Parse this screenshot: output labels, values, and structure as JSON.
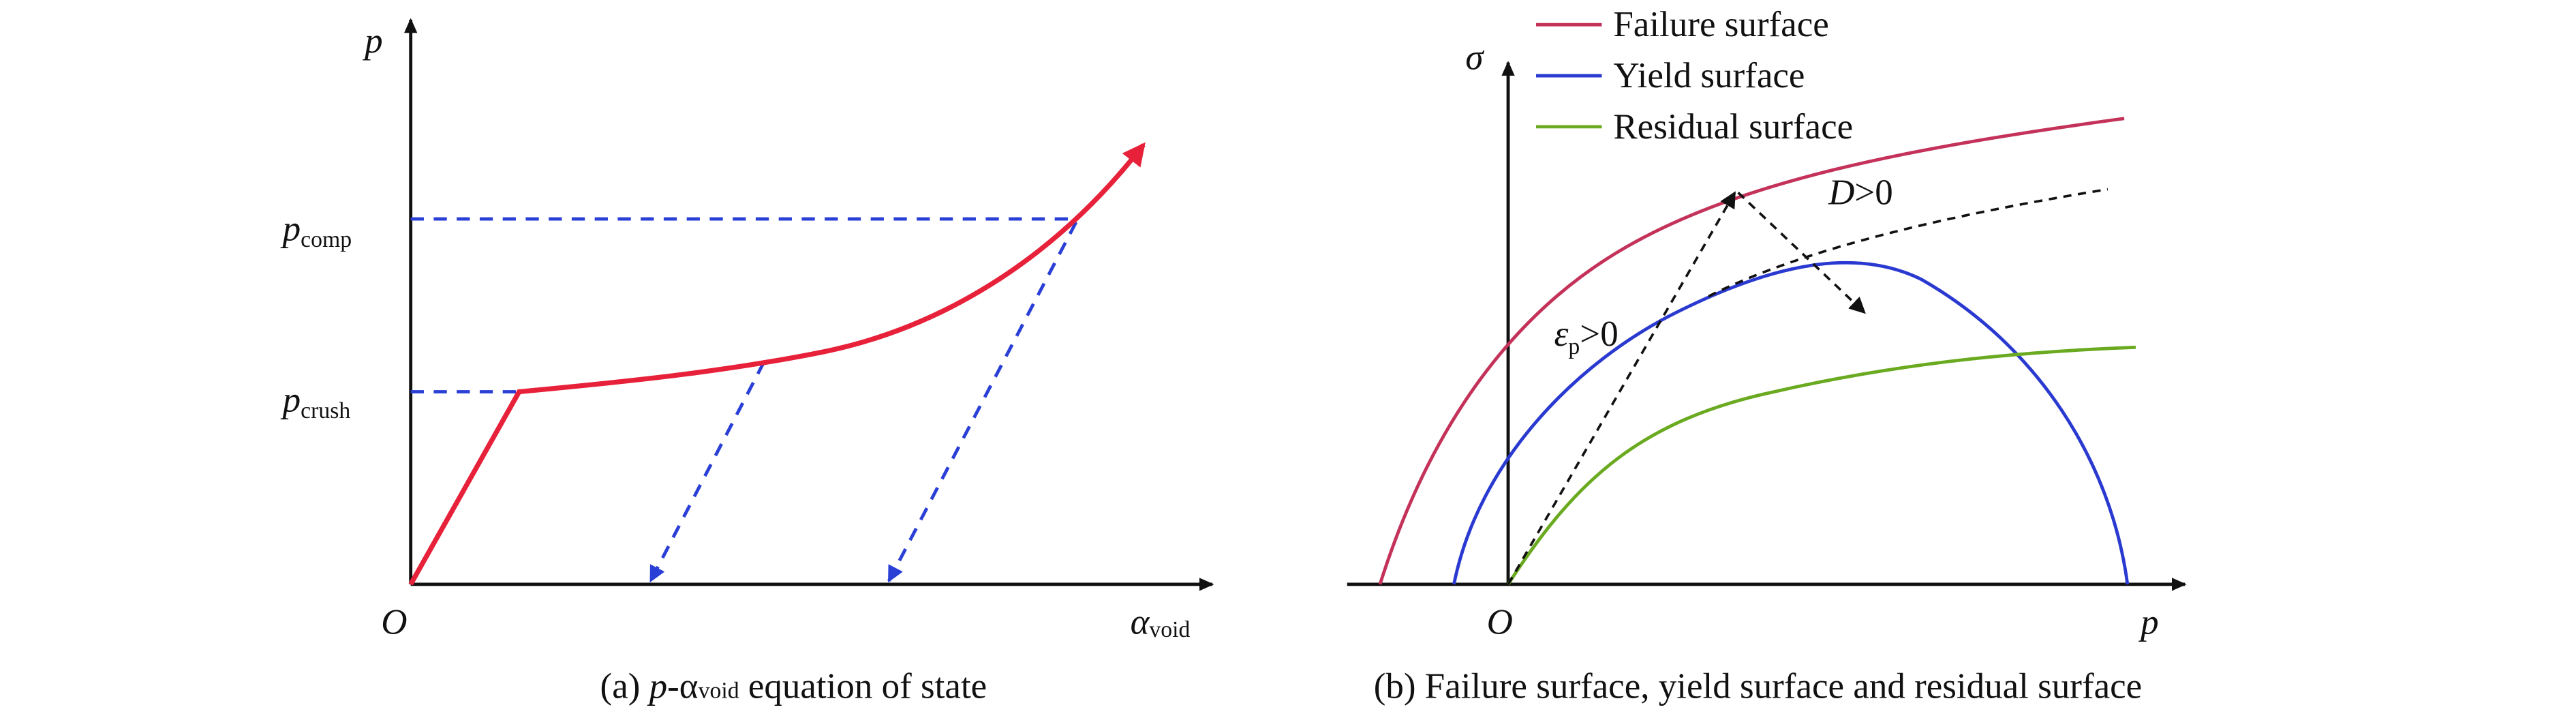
{
  "panel_a": {
    "y_axis_label": "p",
    "origin": "O",
    "x_axis_label": {
      "symbol": "α",
      "sub": "void"
    },
    "levels": [
      {
        "symbol": "p",
        "sub": "comp"
      },
      {
        "symbol": "p",
        "sub": "crush"
      }
    ],
    "caption": {
      "prefix": "(a) ",
      "italic": "p",
      "mid": "-α",
      "sub": "void",
      "suffix": " equation of state"
    }
  },
  "panel_b": {
    "legend": [
      "Failure surface",
      "Yield surface",
      "Residual surface"
    ],
    "y_axis_label": "σ",
    "origin": "O",
    "x_axis_label": "p",
    "annotations": [
      {
        "symbol": "D",
        "text": ">0"
      },
      {
        "symbol": "ε",
        "sub": "p",
        "text": ">0"
      }
    ],
    "caption": "(b) Failure surface, yield surface and residual surface"
  }
}
